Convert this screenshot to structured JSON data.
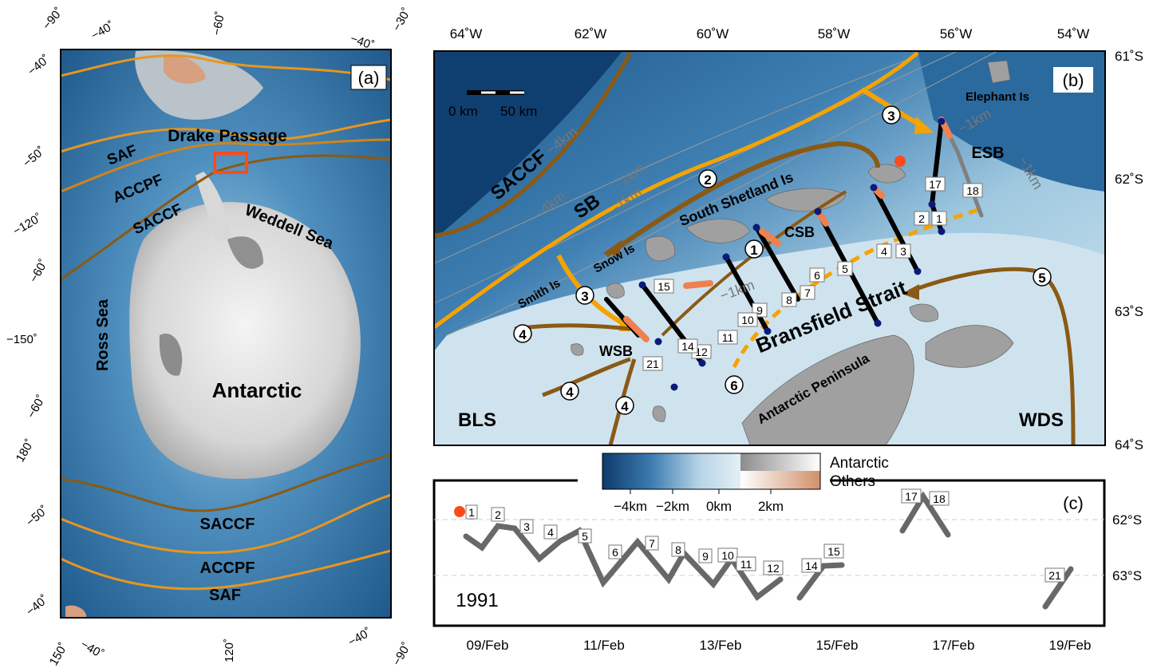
{
  "panel_a": {
    "label": "(a)",
    "place_labels": {
      "drake": "Drake Passage",
      "weddell": "Weddell Sea",
      "ross": "Ross Sea",
      "antarctic": "Antarctic"
    },
    "front_labels": {
      "saf_top": "SAF",
      "accpf_top": "ACCPF",
      "saccf_top": "SACCF",
      "saccf_bottom": "SACCF",
      "accpf_bottom": "ACCPF",
      "saf_bottom": "SAF"
    },
    "graticule_labels": {
      "top_1": "−90˚",
      "top_2": "−40˚",
      "top_3": "−60˚",
      "top_4": "−40˚",
      "top_5": "−30˚",
      "left_1": "−40˚",
      "left_2": "−50˚",
      "left_3": "−120˚",
      "left_4": "−60˚",
      "left_5": "−150˚",
      "left_6": "−60˚",
      "left_7": "180˚",
      "left_8": "−50˚",
      "left_9": "−40˚",
      "bottom_1": "150˚",
      "bottom_2": "−40˚",
      "bottom_3": "120˚",
      "bottom_4": "−40˚",
      "bottom_5": "−90˚"
    },
    "colors": {
      "front": "#e8961e",
      "front_dark": "#8a5a14",
      "box": "#ff4a1a"
    }
  },
  "panel_b": {
    "label": "(b)",
    "lon_ticks": [
      "64˚W",
      "62˚W",
      "60˚W",
      "58˚W",
      "56˚W",
      "54˚W"
    ],
    "lat_ticks": [
      "61˚S",
      "62˚S",
      "63˚S",
      "64˚S"
    ],
    "scale_bar": {
      "left": "0 km",
      "right": "50 km"
    },
    "place_labels": {
      "elephant": "Elephant Is",
      "south_shetland": "South Shetland Is",
      "snow": "Snow Is",
      "smith": "Smith Is",
      "bransfield": "Bransfield Strait",
      "peninsula": "Antarctic Peninsula",
      "bls": "BLS",
      "wds": "WDS",
      "esb": "ESB",
      "csb": "CSB",
      "wsb": "WSB",
      "saccf": "SACCF",
      "sb": "SB"
    },
    "contour_labels": {
      "c1": "−4km",
      "c2": "−4km",
      "c3": "−2km",
      "c4": "−1km",
      "c5": "−1km",
      "c6": "−1km",
      "c7": "−1km",
      "c8": "−1km"
    },
    "circled_numbers": {
      "n1": "1",
      "n2": "2",
      "n3a": "3",
      "n3b": "3",
      "n4a": "4",
      "n4b": "4",
      "n4c": "4",
      "n5": "5",
      "n6": "6"
    },
    "station_labels": [
      "1",
      "2",
      "3",
      "4",
      "5",
      "6",
      "7",
      "8",
      "9",
      "10",
      "11",
      "12",
      "14",
      "15",
      "17",
      "18",
      "21"
    ],
    "colors": {
      "saccf": "#8a5a14",
      "sb": "#f5a300",
      "track": "#000000",
      "track_grey": "#808080",
      "tip": "#f08050",
      "start_dot": "#ff4a1a",
      "station_dot": "#0a1a7a"
    }
  },
  "colorbar": {
    "tick_labels": [
      "−4km",
      "−2km",
      "0km",
      "2km"
    ],
    "legend_antarctic": "Antarctic",
    "legend_others": "Others"
  },
  "panel_c": {
    "label": "(c)",
    "year": "1991",
    "date_ticks": [
      "09/Feb",
      "11/Feb",
      "13/Feb",
      "15/Feb",
      "17/Feb",
      "19/Feb"
    ],
    "lat_ticks": [
      "62°S",
      "63°S"
    ],
    "station_labels": [
      "1",
      "2",
      "3",
      "4",
      "5",
      "6",
      "7",
      "8",
      "9",
      "10",
      "11",
      "12",
      "14",
      "15",
      "17",
      "18",
      "21"
    ]
  }
}
